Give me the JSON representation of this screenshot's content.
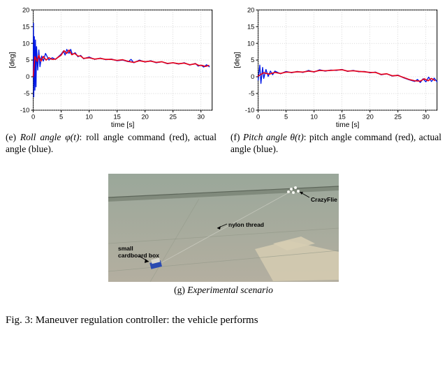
{
  "roll_chart": {
    "type": "line",
    "xlim": [
      0,
      32
    ],
    "ylim": [
      -10,
      20
    ],
    "xticks": [
      0,
      5,
      10,
      15,
      20,
      25,
      30
    ],
    "yticks": [
      -10,
      -5,
      0,
      5,
      10,
      15,
      20
    ],
    "xlabel": "time [s]",
    "ylabel": "[deg]",
    "background_color": "#ffffff",
    "grid_color": "#bfbfbf",
    "axis_color": "#000000",
    "series": [
      {
        "name": "actual",
        "color": "#0018e6",
        "width": 1.3,
        "points": [
          [
            0,
            0
          ],
          [
            0.05,
            16
          ],
          [
            0.1,
            -6
          ],
          [
            0.2,
            12
          ],
          [
            0.3,
            -4
          ],
          [
            0.4,
            11
          ],
          [
            0.5,
            -3
          ],
          [
            0.6,
            9
          ],
          [
            0.8,
            2
          ],
          [
            1.0,
            8
          ],
          [
            1.2,
            3
          ],
          [
            1.5,
            6.2
          ],
          [
            1.8,
            4.7
          ],
          [
            2.2,
            7
          ],
          [
            2.8,
            5
          ],
          [
            3.4,
            5.7
          ],
          [
            4,
            5.2
          ],
          [
            5,
            6.8
          ],
          [
            5.4,
            7.7
          ],
          [
            5.7,
            6.5
          ],
          [
            6,
            8.2
          ],
          [
            6.4,
            7
          ],
          [
            6.7,
            8.2
          ],
          [
            7,
            6.7
          ],
          [
            7.5,
            7.2
          ],
          [
            8,
            6
          ],
          [
            8.5,
            6.4
          ],
          [
            9,
            5.4
          ],
          [
            10,
            5.9
          ],
          [
            11,
            5.2
          ],
          [
            12,
            5.6
          ],
          [
            13,
            5.1
          ],
          [
            14,
            5.3
          ],
          [
            15,
            4.8
          ],
          [
            16,
            5
          ],
          [
            17,
            4.5
          ],
          [
            17.5,
            5.2
          ],
          [
            18,
            4.2
          ],
          [
            19,
            5
          ],
          [
            20,
            4.4
          ],
          [
            21,
            4.8
          ],
          [
            22,
            4.2
          ],
          [
            23,
            4.5
          ],
          [
            24,
            3.9
          ],
          [
            25,
            4.2
          ],
          [
            26,
            3.8
          ],
          [
            27,
            4.2
          ],
          [
            28,
            3.5
          ],
          [
            29,
            4
          ],
          [
            29.5,
            3.2
          ],
          [
            30,
            3.5
          ],
          [
            30.5,
            2.9
          ],
          [
            31,
            3.6
          ],
          [
            31.5,
            3
          ]
        ]
      },
      {
        "name": "command",
        "color": "#e60019",
        "width": 1.6,
        "points": [
          [
            0,
            0
          ],
          [
            0.3,
            6
          ],
          [
            0.7,
            4.6
          ],
          [
            1,
            6.4
          ],
          [
            1.4,
            4.7
          ],
          [
            1.8,
            6.1
          ],
          [
            2.3,
            5
          ],
          [
            2.8,
            5.7
          ],
          [
            3.4,
            5.2
          ],
          [
            4,
            5.3
          ],
          [
            5,
            6.5
          ],
          [
            5.5,
            7.8
          ],
          [
            6,
            7
          ],
          [
            6.4,
            8
          ],
          [
            6.9,
            6.6
          ],
          [
            7.4,
            7
          ],
          [
            8,
            6.2
          ],
          [
            8.5,
            6.2
          ],
          [
            9,
            5.5
          ],
          [
            10,
            5.7
          ],
          [
            11,
            5.3
          ],
          [
            12,
            5.5
          ],
          [
            13,
            5.2
          ],
          [
            14,
            5.2
          ],
          [
            15,
            4.9
          ],
          [
            16,
            5.1
          ],
          [
            17,
            4.6
          ],
          [
            18,
            4.3
          ],
          [
            19,
            4.8
          ],
          [
            20,
            4.5
          ],
          [
            21,
            4.7
          ],
          [
            22,
            4.3
          ],
          [
            23,
            4.5
          ],
          [
            24,
            4
          ],
          [
            25,
            4.2
          ],
          [
            26,
            3.9
          ],
          [
            27,
            4.1
          ],
          [
            28,
            3.6
          ],
          [
            29,
            3.9
          ],
          [
            29.6,
            3.4
          ],
          [
            30.2,
            3.4
          ],
          [
            30.8,
            3.1
          ],
          [
            31.4,
            3.4
          ]
        ]
      }
    ]
  },
  "pitch_chart": {
    "type": "line",
    "xlim": [
      0,
      32
    ],
    "ylim": [
      -10,
      20
    ],
    "xticks": [
      0,
      5,
      10,
      15,
      20,
      25,
      30
    ],
    "yticks": [
      -10,
      -5,
      0,
      5,
      10,
      15,
      20
    ],
    "xlabel": "time [s]",
    "ylabel": "[deg]",
    "background_color": "#ffffff",
    "grid_color": "#bfbfbf",
    "axis_color": "#000000",
    "series": [
      {
        "name": "actual",
        "color": "#0018e6",
        "width": 1.3,
        "points": [
          [
            0,
            -1
          ],
          [
            0.3,
            3.5
          ],
          [
            0.5,
            -2
          ],
          [
            0.8,
            2.8
          ],
          [
            1,
            -0.5
          ],
          [
            1.4,
            2.2
          ],
          [
            1.8,
            0.1
          ],
          [
            2.2,
            1.7
          ],
          [
            2.6,
            0.6
          ],
          [
            3,
            1.7
          ],
          [
            4,
            0.9
          ],
          [
            5,
            1.6
          ],
          [
            6,
            1.2
          ],
          [
            7,
            1.6
          ],
          [
            8,
            1.3
          ],
          [
            9,
            1.9
          ],
          [
            10,
            1.4
          ],
          [
            11,
            2.1
          ],
          [
            12,
            1.7
          ],
          [
            13,
            2
          ],
          [
            14,
            1.9
          ],
          [
            15,
            2.2
          ],
          [
            16,
            1.6
          ],
          [
            17,
            1.9
          ],
          [
            18,
            1.5
          ],
          [
            19,
            1.6
          ],
          [
            20,
            1.2
          ],
          [
            21,
            1.4
          ],
          [
            22,
            0.6
          ],
          [
            23,
            0.9
          ],
          [
            24,
            0.2
          ],
          [
            25,
            0.5
          ],
          [
            26,
            -0.3
          ],
          [
            27,
            -0.9
          ],
          [
            28,
            -1.4
          ],
          [
            28.5,
            -0.8
          ],
          [
            29,
            -1.7
          ],
          [
            29.5,
            -0.6
          ],
          [
            30,
            -1.5
          ],
          [
            30.5,
            -0.1
          ],
          [
            31,
            -1.4
          ],
          [
            31.5,
            -0.4
          ],
          [
            32,
            -1.5
          ]
        ]
      },
      {
        "name": "command",
        "color": "#e60019",
        "width": 1.6,
        "points": [
          [
            0,
            0.2
          ],
          [
            1,
            1.2
          ],
          [
            2,
            0.8
          ],
          [
            3,
            1.3
          ],
          [
            4,
            1
          ],
          [
            5,
            1.4
          ],
          [
            6,
            1.3
          ],
          [
            7,
            1.5
          ],
          [
            8,
            1.4
          ],
          [
            9,
            1.7
          ],
          [
            10,
            1.5
          ],
          [
            11,
            1.9
          ],
          [
            12,
            1.8
          ],
          [
            13,
            1.9
          ],
          [
            14,
            2
          ],
          [
            15,
            2.1
          ],
          [
            16,
            1.7
          ],
          [
            17,
            1.8
          ],
          [
            18,
            1.6
          ],
          [
            19,
            1.5
          ],
          [
            20,
            1.3
          ],
          [
            21,
            1.3
          ],
          [
            22,
            0.7
          ],
          [
            23,
            0.9
          ],
          [
            24,
            0.3
          ],
          [
            25,
            0.4
          ],
          [
            26,
            -0.2
          ],
          [
            27,
            -0.8
          ],
          [
            28,
            -1.2
          ],
          [
            29,
            -1.3
          ],
          [
            29.7,
            -0.6
          ],
          [
            30.4,
            -1.2
          ],
          [
            31,
            -0.5
          ],
          [
            31.6,
            -1.1
          ]
        ]
      }
    ]
  },
  "captions": {
    "e_prefix": "(e) ",
    "e_ital": "Roll angle φ(t)",
    "e_rest": ": roll angle command (red), actual angle (blue).",
    "f_prefix": "(f) ",
    "f_ital": "Pitch angle θ(t)",
    "f_rest": ": pitch angle command (red), actual angle (blue).",
    "g_prefix": "(g) ",
    "g_ital": "Experimental scenario"
  },
  "scenario": {
    "background_top_color": "#9aa79a",
    "background_bottom_color": "#b4afa0",
    "floor_tape_color": "#d6cdb2",
    "wall_trim_color": "#747d6f",
    "annotations": {
      "crazyflie": "CrazyFlie",
      "thread": "nylon thread",
      "box": "small\ncardboard box"
    },
    "crazyflie_color": "#f6f7f2",
    "box_color": "#2a4ab0"
  },
  "fig_line": "Fig. 3: Maneuver regulation controller: the vehicle performs"
}
